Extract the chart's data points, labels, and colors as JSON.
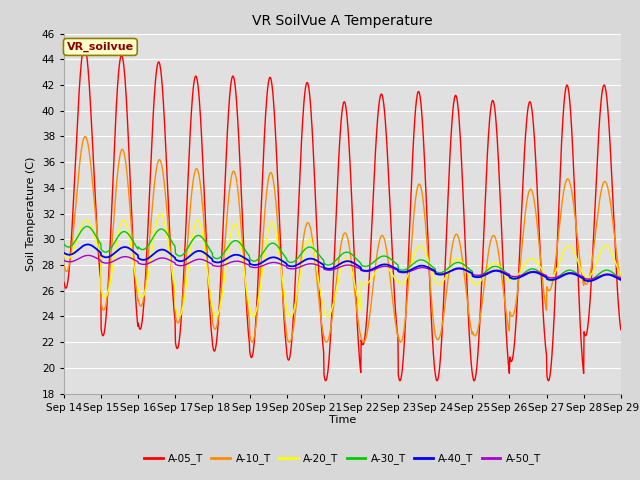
{
  "title": "VR SoilVue A Temperature",
  "xlabel": "Time",
  "ylabel": "Soil Temperature (C)",
  "ylim": [
    18,
    46
  ],
  "yticks": [
    18,
    20,
    22,
    24,
    26,
    28,
    30,
    32,
    34,
    36,
    38,
    40,
    42,
    44,
    46
  ],
  "xtick_labels": [
    "Sep 14",
    "Sep 15",
    "Sep 16",
    "Sep 17",
    "Sep 18",
    "Sep 19",
    "Sep 20",
    "Sep 21",
    "Sep 22",
    "Sep 23",
    "Sep 24",
    "Sep 25",
    "Sep 26",
    "Sep 27",
    "Sep 28",
    "Sep 29"
  ],
  "legend_label": "VR_soilvue",
  "series_names": [
    "A-05_T",
    "A-10_T",
    "A-20_T",
    "A-30_T",
    "A-40_T",
    "A-50_T"
  ],
  "series_colors": [
    "#ff0000",
    "#ff8c00",
    "#ffff00",
    "#00cc00",
    "#0000ff",
    "#aa00cc"
  ],
  "fig_bg_color": "#d8d8d8",
  "plot_bg_color": "#e0e0e0",
  "grid_color": "#ffffff",
  "n_days": 15,
  "pts_per_day": 96,
  "A05_max_peaks": [
    45.0,
    44.3,
    43.8,
    42.7,
    42.7,
    42.6,
    42.2,
    40.7,
    41.3,
    41.5,
    41.2,
    40.8,
    40.7,
    42.0,
    42.0
  ],
  "A05_min_vals": [
    26.2,
    22.5,
    23.0,
    21.5,
    21.3,
    20.8,
    20.6,
    19.0,
    21.8,
    19.0,
    19.0,
    19.0,
    20.5,
    19.0,
    22.5
  ],
  "A10_max_peaks": [
    38.0,
    37.0,
    36.2,
    35.5,
    35.3,
    35.2,
    31.3,
    30.5,
    30.3,
    34.3,
    30.4,
    30.3,
    33.9,
    34.7,
    34.5
  ],
  "A10_min_vals": [
    27.5,
    24.5,
    24.8,
    23.5,
    23.0,
    22.0,
    22.0,
    22.0,
    22.0,
    22.0,
    22.2,
    22.5,
    24.0,
    26.0,
    26.5
  ],
  "A20_max_peaks": [
    31.5,
    31.5,
    32.0,
    31.5,
    31.2,
    31.3,
    30.0,
    28.5,
    28.0,
    29.5,
    28.5,
    28.2,
    28.5,
    29.5,
    29.5
  ],
  "A20_min_vals": [
    28.5,
    25.5,
    25.5,
    24.0,
    24.0,
    24.0,
    24.0,
    24.0,
    26.5,
    26.5,
    26.5,
    26.5,
    27.0,
    27.0,
    27.0
  ],
  "A30_base": [
    30.2,
    29.8,
    30.0,
    29.5,
    29.2,
    29.0,
    28.8,
    28.5,
    28.3,
    28.0,
    27.8,
    27.5,
    27.3,
    27.2,
    27.2
  ],
  "A30_amp": [
    0.8,
    0.8,
    0.8,
    0.8,
    0.7,
    0.7,
    0.6,
    0.5,
    0.4,
    0.4,
    0.4,
    0.4,
    0.4,
    0.4,
    0.4
  ],
  "A40_base": [
    29.2,
    29.0,
    28.8,
    28.7,
    28.5,
    28.3,
    28.2,
    28.0,
    27.8,
    27.7,
    27.5,
    27.3,
    27.2,
    27.1,
    27.0
  ],
  "A40_amp": [
    0.4,
    0.4,
    0.4,
    0.4,
    0.3,
    0.3,
    0.3,
    0.3,
    0.25,
    0.25,
    0.25,
    0.25,
    0.25,
    0.25,
    0.25
  ],
  "A50_base": [
    28.5,
    28.4,
    28.3,
    28.2,
    28.1,
    28.0,
    27.9,
    27.8,
    27.7,
    27.6,
    27.5,
    27.4,
    27.3,
    27.2,
    27.1
  ],
  "A50_amp": [
    0.25,
    0.25,
    0.25,
    0.25,
    0.2,
    0.2,
    0.2,
    0.2,
    0.2,
    0.2,
    0.2,
    0.2,
    0.2,
    0.2,
    0.2
  ]
}
